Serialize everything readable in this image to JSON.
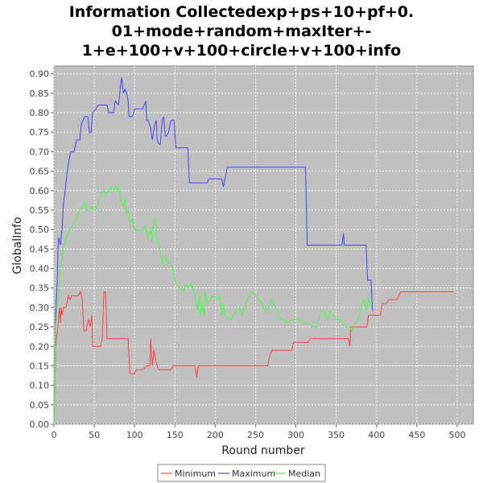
{
  "chart_data": {
    "type": "line",
    "title_lines": [
      "Information Collectedexp+ps+10+pf+0.",
      "01+mode+random+maxIter+-",
      "1+e+100+v+100+circle+v+100+info"
    ],
    "xlabel": "Round number",
    "ylabel": "GlobalInfo",
    "xlim": [
      0,
      520
    ],
    "ylim": [
      0,
      0.92
    ],
    "xticks": [
      "0",
      "50",
      "100",
      "150",
      "200",
      "250",
      "300",
      "350",
      "400",
      "450",
      "500"
    ],
    "yticks": [
      "0.00",
      "0.05",
      "0.10",
      "0.15",
      "0.20",
      "0.25",
      "0.30",
      "0.35",
      "0.40",
      "0.45",
      "0.50",
      "0.55",
      "0.60",
      "0.65",
      "0.70",
      "0.75",
      "0.80",
      "0.85",
      "0.90"
    ],
    "grid": true,
    "legend_position": "bottom",
    "colors": {
      "minimum": "#ff4444",
      "maximum": "#4444ff",
      "median": "#44ff44",
      "plot_bg": "#c0c0c0",
      "grid": "#ffffff"
    },
    "series": [
      {
        "name": "Minimum",
        "points": [
          [
            0,
            0.0
          ],
          [
            2,
            0.2
          ],
          [
            5,
            0.25
          ],
          [
            7,
            0.3
          ],
          [
            8,
            0.26
          ],
          [
            9,
            0.3
          ],
          [
            10,
            0.28
          ],
          [
            12,
            0.3
          ],
          [
            15,
            0.3
          ],
          [
            18,
            0.33
          ],
          [
            20,
            0.32
          ],
          [
            22,
            0.33
          ],
          [
            30,
            0.33
          ],
          [
            33,
            0.34
          ],
          [
            35,
            0.32
          ],
          [
            37,
            0.24
          ],
          [
            40,
            0.24
          ],
          [
            43,
            0.27
          ],
          [
            45,
            0.25
          ],
          [
            47,
            0.28
          ],
          [
            48,
            0.2
          ],
          [
            55,
            0.2
          ],
          [
            58,
            0.2
          ],
          [
            60,
            0.22
          ],
          [
            62,
            0.34
          ],
          [
            64,
            0.34
          ],
          [
            66,
            0.22
          ],
          [
            70,
            0.22
          ],
          [
            92,
            0.22
          ],
          [
            94,
            0.13
          ],
          [
            100,
            0.13
          ],
          [
            102,
            0.14
          ],
          [
            110,
            0.14
          ],
          [
            115,
            0.15
          ],
          [
            119,
            0.15
          ],
          [
            120,
            0.22
          ],
          [
            122,
            0.15
          ],
          [
            124,
            0.19
          ],
          [
            126,
            0.17
          ],
          [
            128,
            0.15
          ],
          [
            130,
            0.14
          ],
          [
            145,
            0.14
          ],
          [
            148,
            0.15
          ],
          [
            175,
            0.15
          ],
          [
            177,
            0.12
          ],
          [
            179,
            0.15
          ],
          [
            265,
            0.15
          ],
          [
            267,
            0.17
          ],
          [
            270,
            0.19
          ],
          [
            295,
            0.19
          ],
          [
            297,
            0.21
          ],
          [
            315,
            0.21
          ],
          [
            318,
            0.22
          ],
          [
            365,
            0.22
          ],
          [
            367,
            0.2
          ],
          [
            368,
            0.25
          ],
          [
            380,
            0.25
          ],
          [
            388,
            0.25
          ],
          [
            390,
            0.28
          ],
          [
            400,
            0.28
          ],
          [
            405,
            0.28
          ],
          [
            407,
            0.31
          ],
          [
            412,
            0.31
          ],
          [
            415,
            0.32
          ],
          [
            425,
            0.32
          ],
          [
            430,
            0.34
          ],
          [
            495,
            0.34
          ]
        ]
      },
      {
        "name": "Maximum",
        "points": [
          [
            0,
            0.0
          ],
          [
            2,
            0.28
          ],
          [
            4,
            0.36
          ],
          [
            5,
            0.45
          ],
          [
            6,
            0.48
          ],
          [
            8,
            0.46
          ],
          [
            10,
            0.5
          ],
          [
            12,
            0.57
          ],
          [
            14,
            0.6
          ],
          [
            16,
            0.64
          ],
          [
            18,
            0.67
          ],
          [
            21,
            0.7
          ],
          [
            25,
            0.7
          ],
          [
            28,
            0.73
          ],
          [
            32,
            0.73
          ],
          [
            34,
            0.77
          ],
          [
            38,
            0.79
          ],
          [
            42,
            0.79
          ],
          [
            44,
            0.75
          ],
          [
            46,
            0.75
          ],
          [
            48,
            0.8
          ],
          [
            52,
            0.81
          ],
          [
            55,
            0.82
          ],
          [
            62,
            0.82
          ],
          [
            66,
            0.82
          ],
          [
            68,
            0.8
          ],
          [
            74,
            0.8
          ],
          [
            76,
            0.83
          ],
          [
            80,
            0.82
          ],
          [
            82,
            0.86
          ],
          [
            84,
            0.89
          ],
          [
            86,
            0.85
          ],
          [
            88,
            0.86
          ],
          [
            90,
            0.85
          ],
          [
            92,
            0.83
          ],
          [
            93,
            0.79
          ],
          [
            97,
            0.79
          ],
          [
            99,
            0.8
          ],
          [
            100,
            0.81
          ],
          [
            110,
            0.81
          ],
          [
            112,
            0.82
          ],
          [
            114,
            0.83
          ],
          [
            115,
            0.78
          ],
          [
            117,
            0.78
          ],
          [
            120,
            0.76
          ],
          [
            122,
            0.73
          ],
          [
            125,
            0.77
          ],
          [
            127,
            0.78
          ],
          [
            128,
            0.73
          ],
          [
            130,
            0.72
          ],
          [
            132,
            0.72
          ],
          [
            134,
            0.78
          ],
          [
            136,
            0.79
          ],
          [
            138,
            0.74
          ],
          [
            140,
            0.74
          ],
          [
            142,
            0.75
          ],
          [
            145,
            0.78
          ],
          [
            149,
            0.78
          ],
          [
            151,
            0.71
          ],
          [
            166,
            0.71
          ],
          [
            168,
            0.62
          ],
          [
            190,
            0.62
          ],
          [
            192,
            0.63
          ],
          [
            208,
            0.63
          ],
          [
            210,
            0.61
          ],
          [
            212,
            0.63
          ],
          [
            215,
            0.66
          ],
          [
            312,
            0.66
          ],
          [
            314,
            0.46
          ],
          [
            355,
            0.46
          ],
          [
            357,
            0.46
          ],
          [
            359,
            0.49
          ],
          [
            360,
            0.46
          ],
          [
            387,
            0.46
          ],
          [
            389,
            0.37
          ],
          [
            393,
            0.37
          ],
          [
            395,
            0.29
          ]
        ]
      },
      {
        "name": "Median",
        "points": [
          [
            0,
            0.0
          ],
          [
            2,
            0.25
          ],
          [
            4,
            0.3
          ],
          [
            6,
            0.35
          ],
          [
            8,
            0.4
          ],
          [
            10,
            0.43
          ],
          [
            12,
            0.46
          ],
          [
            16,
            0.48
          ],
          [
            20,
            0.5
          ],
          [
            24,
            0.51
          ],
          [
            28,
            0.53
          ],
          [
            32,
            0.55
          ],
          [
            36,
            0.56
          ],
          [
            38,
            0.57
          ],
          [
            40,
            0.55
          ],
          [
            44,
            0.55
          ],
          [
            46,
            0.56
          ],
          [
            50,
            0.55
          ],
          [
            54,
            0.56
          ],
          [
            56,
            0.58
          ],
          [
            58,
            0.59
          ],
          [
            62,
            0.6
          ],
          [
            66,
            0.59
          ],
          [
            70,
            0.61
          ],
          [
            74,
            0.6
          ],
          [
            76,
            0.61
          ],
          [
            78,
            0.6
          ],
          [
            80,
            0.61
          ],
          [
            82,
            0.59
          ],
          [
            84,
            0.57
          ],
          [
            86,
            0.56
          ],
          [
            88,
            0.58
          ],
          [
            90,
            0.54
          ],
          [
            92,
            0.55
          ],
          [
            94,
            0.52
          ],
          [
            96,
            0.52
          ],
          [
            98,
            0.53
          ],
          [
            100,
            0.5
          ],
          [
            110,
            0.5
          ],
          [
            112,
            0.51
          ],
          [
            114,
            0.5
          ],
          [
            116,
            0.48
          ],
          [
            118,
            0.49
          ],
          [
            120,
            0.5
          ],
          [
            122,
            0.47
          ],
          [
            124,
            0.53
          ],
          [
            126,
            0.52
          ],
          [
            128,
            0.48
          ],
          [
            130,
            0.46
          ],
          [
            132,
            0.44
          ],
          [
            134,
            0.41
          ],
          [
            136,
            0.42
          ],
          [
            138,
            0.43
          ],
          [
            140,
            0.42
          ],
          [
            145,
            0.41
          ],
          [
            148,
            0.4
          ],
          [
            150,
            0.37
          ],
          [
            152,
            0.36
          ],
          [
            156,
            0.35
          ],
          [
            160,
            0.34
          ],
          [
            164,
            0.36
          ],
          [
            166,
            0.35
          ],
          [
            170,
            0.36
          ],
          [
            174,
            0.34
          ],
          [
            176,
            0.32
          ],
          [
            178,
            0.29
          ],
          [
            180,
            0.33
          ],
          [
            182,
            0.28
          ],
          [
            184,
            0.31
          ],
          [
            186,
            0.28
          ],
          [
            188,
            0.34
          ],
          [
            190,
            0.31
          ],
          [
            194,
            0.32
          ],
          [
            198,
            0.33
          ],
          [
            202,
            0.32
          ],
          [
            206,
            0.33
          ],
          [
            208,
            0.28
          ],
          [
            210,
            0.31
          ],
          [
            212,
            0.28
          ],
          [
            216,
            0.27
          ],
          [
            220,
            0.27
          ],
          [
            222,
            0.28
          ],
          [
            226,
            0.29
          ],
          [
            230,
            0.3
          ],
          [
            234,
            0.28
          ],
          [
            238,
            0.31
          ],
          [
            242,
            0.33
          ],
          [
            246,
            0.34
          ],
          [
            250,
            0.33
          ],
          [
            254,
            0.32
          ],
          [
            258,
            0.31
          ],
          [
            262,
            0.29
          ],
          [
            266,
            0.3
          ],
          [
            270,
            0.32
          ],
          [
            274,
            0.3
          ],
          [
            278,
            0.29
          ],
          [
            280,
            0.27
          ],
          [
            284,
            0.27
          ],
          [
            290,
            0.26
          ],
          [
            295,
            0.27
          ],
          [
            300,
            0.27
          ],
          [
            304,
            0.27
          ],
          [
            308,
            0.26
          ],
          [
            315,
            0.26
          ],
          [
            320,
            0.25
          ],
          [
            325,
            0.25
          ],
          [
            328,
            0.27
          ],
          [
            332,
            0.29
          ],
          [
            335,
            0.29
          ],
          [
            338,
            0.27
          ],
          [
            340,
            0.27
          ],
          [
            342,
            0.29
          ],
          [
            346,
            0.28
          ],
          [
            350,
            0.27
          ],
          [
            354,
            0.27
          ],
          [
            358,
            0.26
          ],
          [
            362,
            0.25
          ],
          [
            366,
            0.25
          ],
          [
            370,
            0.24
          ],
          [
            374,
            0.26
          ],
          [
            378,
            0.27
          ],
          [
            382,
            0.31
          ],
          [
            384,
            0.32
          ],
          [
            386,
            0.31
          ],
          [
            388,
            0.29
          ],
          [
            390,
            0.33
          ],
          [
            392,
            0.3
          ]
        ]
      }
    ]
  }
}
